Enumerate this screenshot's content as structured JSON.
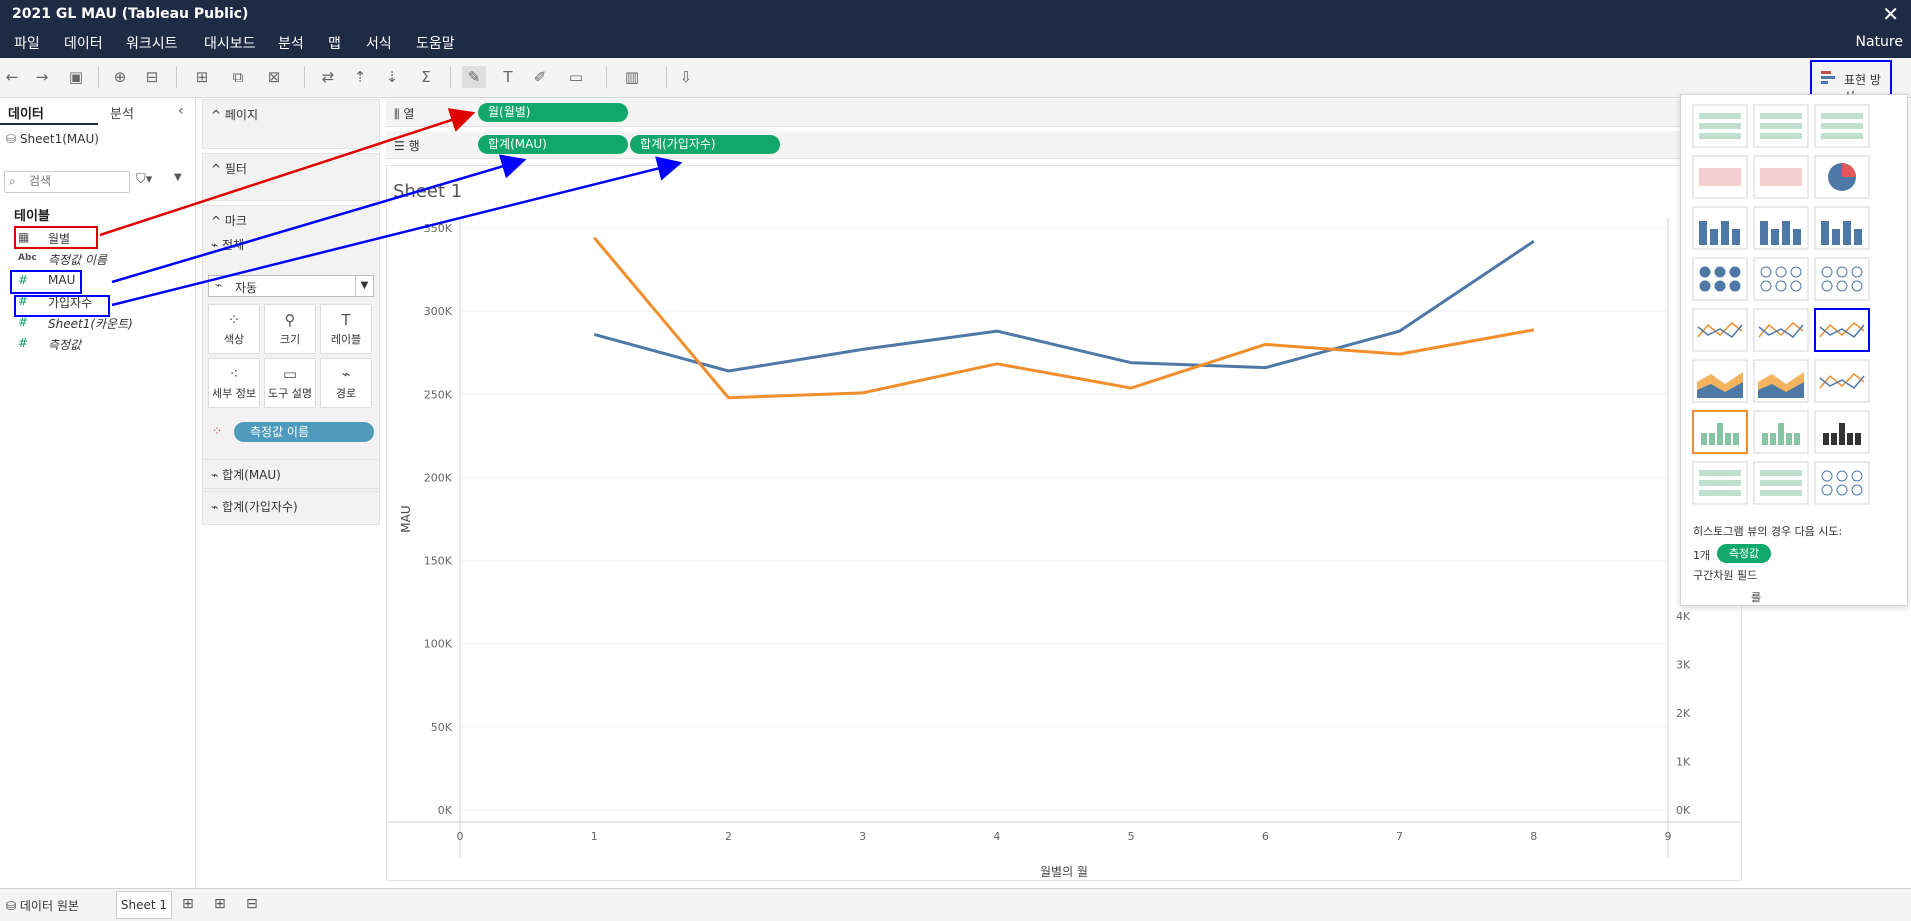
{
  "window": {
    "title": "2021 GL MAU (Tableau Public)"
  },
  "menu": {
    "items": [
      "파일",
      "데이터",
      "워크시트",
      "대시보드",
      "분석",
      "맵",
      "서식",
      "도움말"
    ],
    "right_label": "Nature"
  },
  "showme_button": {
    "label": "표현 방식"
  },
  "data_pane": {
    "tabs": {
      "data": "데이터",
      "analysis": "분석"
    },
    "datasource": "Sheet1(MAU)",
    "search_placeholder": "검색",
    "tables_header": "테이블",
    "fields": [
      {
        "name": "월별",
        "icon": "calendar-icon",
        "italic": false
      },
      {
        "name": "측정값 이름",
        "icon": "abc-icon",
        "icon_text": "Abc",
        "italic": true
      },
      {
        "name": "MAU",
        "icon": "number-icon",
        "icon_text": "#",
        "italic": false
      },
      {
        "name": "가입자수",
        "icon": "number-icon",
        "icon_text": "#",
        "italic": false
      },
      {
        "name": "Sheet1(카운트)",
        "icon": "number-icon",
        "icon_text": "#",
        "italic": true
      },
      {
        "name": "측정값",
        "icon": "number-icon",
        "icon_text": "#",
        "italic": true
      }
    ]
  },
  "cards": {
    "pages": "페이지",
    "filters": "필터",
    "marks": "마크",
    "marks_all": "전체",
    "mark_type": "자동",
    "mark_buttons": [
      "색상",
      "크기",
      "레이블",
      "세부 정보",
      "도구 설명",
      "경로"
    ],
    "color_pill": "측정값 이름",
    "measures": [
      "합계(MAU)",
      "합계(가입자수)"
    ]
  },
  "shelves": {
    "columns_label": "열",
    "rows_label": "행",
    "columns_pills": [
      "월(월별)"
    ],
    "rows_pills": [
      "합계(MAU)",
      "합계(가입자수)"
    ]
  },
  "sheet": {
    "title": "Sheet 1"
  },
  "bottom": {
    "datasource_tab": "데이터 원본",
    "sheet_tab": "Sheet 1"
  },
  "showme_panel": {
    "hint_line1": "히스토그램 뷰의 경우 다음 시도:",
    "hint_count": "1개",
    "hint_pill": "측정값",
    "hint_line3": "구간차원 필드",
    "hint_line4": "를"
  },
  "colors": {
    "mau": "#4e79a7",
    "subscribers": "#f28e2b",
    "pill_green": "#13a86b",
    "pill_blue": "#4e9bbd",
    "header_bg": "#1f2a44"
  },
  "chart_data": {
    "type": "line",
    "x": [
      1,
      2,
      3,
      4,
      5,
      6,
      7,
      8
    ],
    "xlabel": "월별의 월",
    "xlim": [
      0,
      9
    ],
    "x_ticks": [
      "0",
      "1",
      "2",
      "3",
      "4",
      "5",
      "6",
      "7",
      "8",
      "9"
    ],
    "ylabel": "MAU",
    "ylim": [
      0,
      350000
    ],
    "y_ticks": [
      "0K",
      "50K",
      "100K",
      "150K",
      "200K",
      "250K",
      "300K",
      "350K"
    ],
    "y2_ticks": [
      "0K",
      "1K",
      "2K",
      "3K",
      "4K"
    ],
    "y2_tick_values": [
      0,
      1000,
      2000,
      3000,
      4000
    ],
    "y2lim": [
      0,
      12000
    ],
    "series": [
      {
        "name": "MAU",
        "axis": "left",
        "color": "#4e79a7",
        "values": [
          286000,
          264000,
          277000,
          288000,
          269000,
          266000,
          288000,
          342000
        ]
      },
      {
        "name": "가입자수",
        "axis": "right",
        "color": "#f28e2b",
        "values": [
          11800,
          8500,
          8600,
          9200,
          8700,
          9600,
          9400,
          9900
        ]
      }
    ],
    "grid": true
  }
}
